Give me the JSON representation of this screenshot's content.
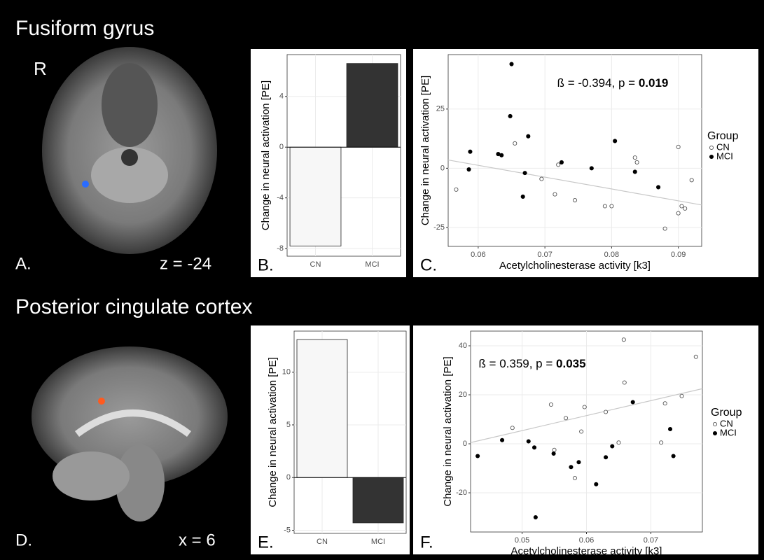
{
  "sections": [
    {
      "title": "Fusiform gyrus",
      "orientation": "R",
      "panel": "A.",
      "slice": "z = -24"
    },
    {
      "title": "Posterior cingulate cortex",
      "panel": "D.",
      "slice": "x = 6"
    }
  ],
  "chart_data": [
    {
      "type": "bar",
      "panel_label": "B.",
      "ylabel": "Change in neural activation [PE]",
      "categories": [
        "CN",
        "MCI"
      ],
      "values": [
        -7.8,
        6.6
      ],
      "colors": [
        "#f7f7f7",
        "#333333"
      ],
      "ylim": [
        -8.6,
        7.3
      ],
      "yticks": [
        -8,
        -4,
        0,
        4
      ],
      "grid": true
    },
    {
      "type": "scatter",
      "panel_label": "C.",
      "xlabel": "Acetylcholinesterase activity [k3]",
      "ylabel": "Change in neural activation [PE]",
      "annotation": {
        "text": "ß = -0.394, p = ",
        "bold": "0.019"
      },
      "legend_title": "Group",
      "series": [
        {
          "name": "CN",
          "marker": "open",
          "color": "#555555",
          "x": [
            0.0567,
            0.0655,
            0.0695,
            0.0715,
            0.072,
            0.0745,
            0.079,
            0.08,
            0.0835,
            0.0838,
            0.088,
            0.09,
            0.09,
            0.0905,
            0.091,
            0.092
          ],
          "y": [
            -9,
            10.5,
            -4.5,
            -11,
            1.5,
            -13.5,
            -16,
            -16,
            4.5,
            2.5,
            -25.5,
            9,
            -19,
            -16,
            -17,
            -5
          ]
        },
        {
          "name": "MCI",
          "marker": "filled",
          "color": "#000000",
          "x": [
            0.0588,
            0.0586,
            0.063,
            0.0635,
            0.065,
            0.0648,
            0.0675,
            0.067,
            0.0667,
            0.0725,
            0.077,
            0.0805,
            0.0835,
            0.087
          ],
          "y": [
            7,
            -0.5,
            6,
            5.5,
            44,
            22,
            13.5,
            -2,
            -12,
            2.5,
            0,
            11.5,
            -1.5,
            -8
          ]
        }
      ],
      "fit_line": {
        "x": [
          0.0555,
          0.0935
        ],
        "y": [
          3.5,
          -15.5
        ],
        "color": "#c8c8c8"
      },
      "xlim": [
        0.0555,
        0.0935
      ],
      "ylim": [
        -33,
        48
      ],
      "xticks": [
        0.06,
        0.07,
        0.08,
        0.09
      ],
      "yticks": [
        -25,
        0,
        25
      ],
      "grid": true
    },
    {
      "type": "bar",
      "panel_label": "E.",
      "ylabel": "Change in neural activation [PE]",
      "categories": [
        "CN",
        "MCI"
      ],
      "values": [
        13.1,
        -4.3
      ],
      "colors": [
        "#f7f7f7",
        "#333333"
      ],
      "ylim": [
        -5.3,
        13.9
      ],
      "yticks": [
        -5,
        0,
        5,
        10
      ],
      "grid": true
    },
    {
      "type": "scatter",
      "panel_label": "F.",
      "xlabel": "Acetylcholinesterase activity [k3]",
      "ylabel": "Change in neural activation [PE]",
      "annotation": {
        "text": "ß = 0.359, p = ",
        "bold": "0.035"
      },
      "legend_title": "Group",
      "series": [
        {
          "name": "CN",
          "marker": "open",
          "color": "#555555",
          "x": [
            0.0485,
            0.0545,
            0.055,
            0.0568,
            0.0582,
            0.0592,
            0.0597,
            0.063,
            0.065,
            0.0658,
            0.0659,
            0.0716,
            0.0722,
            0.0748,
            0.077
          ],
          "y": [
            6.5,
            16,
            -2.5,
            10.5,
            -14,
            5,
            15,
            13,
            0.5,
            42.5,
            25,
            0.5,
            16.5,
            19.5,
            35.5
          ]
        },
        {
          "name": "MCI",
          "marker": "filled",
          "color": "#000000",
          "x": [
            0.0431,
            0.0469,
            0.051,
            0.0519,
            0.0521,
            0.0549,
            0.0576,
            0.0588,
            0.0615,
            0.063,
            0.064,
            0.0672,
            0.073,
            0.0735
          ],
          "y": [
            -5,
            1.5,
            1,
            -1.5,
            -30,
            -4,
            -9.5,
            -7.5,
            -16.5,
            -5.5,
            -1,
            17,
            6,
            -5
          ]
        }
      ],
      "fit_line": {
        "x": [
          0.042,
          0.078
        ],
        "y": [
          0.5,
          22.5
        ],
        "color": "#c8c8c8"
      },
      "xlim": [
        0.042,
        0.078
      ],
      "ylim": [
        -36,
        46
      ],
      "xticks": [
        0.05,
        0.06,
        0.07
      ],
      "yticks": [
        -20,
        0,
        20,
        40
      ],
      "grid": true
    }
  ]
}
